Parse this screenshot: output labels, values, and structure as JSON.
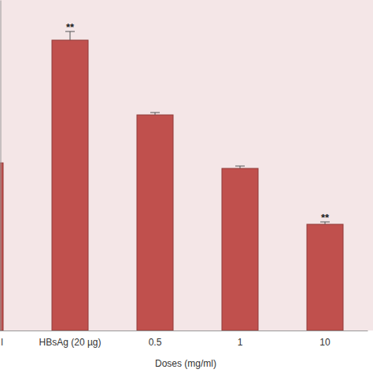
{
  "chart_data": {
    "type": "bar",
    "x_label": "Doses (mg/ml)",
    "categories": [
      "l",
      "HBsAg (20 µg)",
      "0.5",
      "1",
      "10"
    ],
    "values": [
      213,
      369,
      274,
      206,
      135
    ],
    "errors": [
      3,
      11,
      3,
      3,
      3
    ],
    "annotations": [
      {
        "category": "HBsAg (20 µg)",
        "text": "**"
      },
      {
        "category": "10",
        "text": "**"
      }
    ],
    "color": "#c0504d",
    "ylim": [
      0,
      420
    ],
    "yticks": [],
    "tick_labels": "x",
    "grid": false
  }
}
